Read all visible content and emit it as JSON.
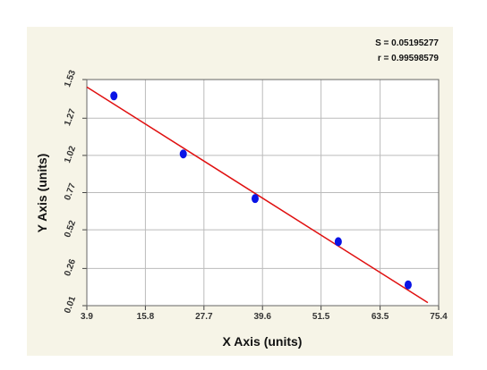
{
  "chart_data": {
    "type": "scatter",
    "annotations": [
      "S = 0.05195277",
      "r = 0.99598579"
    ],
    "x_label": "X Axis (units)",
    "y_label": "Y Axis (units)",
    "xlim": [
      3.9,
      75.4
    ],
    "xticks": [
      3.9,
      15.8,
      27.7,
      39.6,
      51.5,
      63.5,
      75.4
    ],
    "ylim": [
      0.01,
      1.53
    ],
    "yticks": [
      0.01,
      0.26,
      0.52,
      0.77,
      1.02,
      1.27,
      1.53
    ],
    "grid": true,
    "series": [
      {
        "color": "#0a14e6",
        "x": [
          9.4,
          23.5,
          38.1,
          55.0,
          69.2
        ],
        "values": [
          1.42,
          1.03,
          0.73,
          0.44,
          0.15
        ]
      }
    ],
    "fit_line": {
      "color": "#e01010",
      "x": [
        3.9,
        73.2
      ],
      "y": [
        1.48,
        0.03
      ]
    }
  }
}
